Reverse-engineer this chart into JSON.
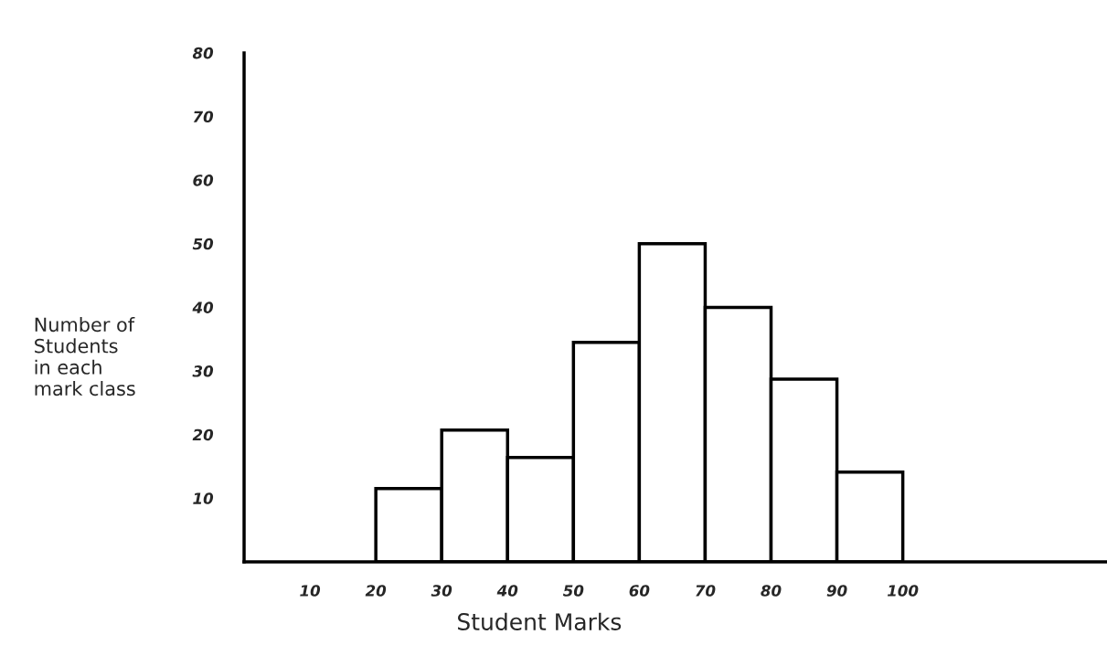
{
  "chart_data": {
    "type": "histogram",
    "xlabel": "Student Marks",
    "ylabel": "Number of\nStudents\nin each\nmark class",
    "bins": [
      20,
      30,
      40,
      50,
      60,
      70,
      80,
      90,
      100
    ],
    "values": [
      11.5,
      20.7,
      16.4,
      34.5,
      50,
      40,
      28.7,
      14.1
    ],
    "color": "#ffffff",
    "xlim": [
      0,
      131
    ],
    "xticks": [
      10,
      20,
      30,
      40,
      50,
      60,
      70,
      80,
      90,
      100
    ],
    "ylim": [
      0,
      80
    ],
    "yticks": [
      10,
      20,
      30,
      40,
      50,
      60,
      70,
      80
    ],
    "grid": false,
    "legend": false
  }
}
